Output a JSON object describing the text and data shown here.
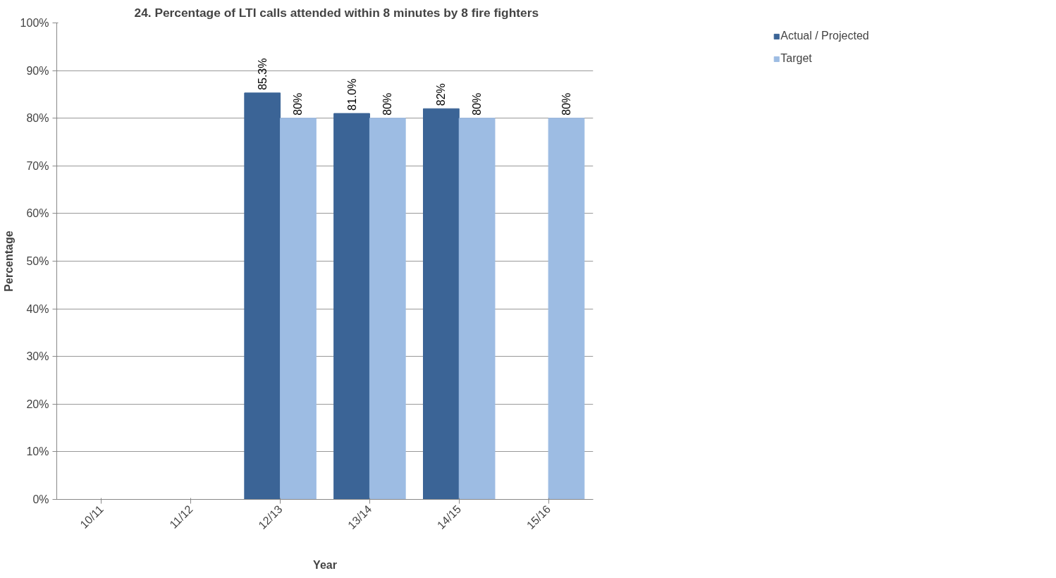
{
  "chart_data": {
    "type": "bar",
    "title": "24. Percentage of LTI calls attended within 8 minutes by 8 fire fighters",
    "xlabel": "Year",
    "ylabel": "Percentage",
    "categories": [
      "10/11",
      "11/12",
      "12/13",
      "13/14",
      "14/15",
      "15/16"
    ],
    "series": [
      {
        "name": "Actual / Projected",
        "color": "#3b6496",
        "values": [
          null,
          null,
          85.3,
          81.0,
          82,
          null
        ],
        "value_labels": [
          null,
          null,
          "85.3%",
          "81.0%",
          "82%",
          null
        ]
      },
      {
        "name": "Target",
        "color": "#9dbce3",
        "values": [
          null,
          null,
          80,
          80,
          80,
          80
        ],
        "value_labels": [
          null,
          null,
          "80%",
          "80%",
          "80%",
          "80%"
        ]
      }
    ],
    "ylim": [
      0,
      100
    ],
    "yticks": [
      {
        "value": 0,
        "label": "0%"
      },
      {
        "value": 10,
        "label": "10%"
      },
      {
        "value": 20,
        "label": "20%"
      },
      {
        "value": 30,
        "label": "30%"
      },
      {
        "value": 40,
        "label": "40%"
      },
      {
        "value": 50,
        "label": "50%"
      },
      {
        "value": 60,
        "label": "60%"
      },
      {
        "value": 70,
        "label": "70%"
      },
      {
        "value": 80,
        "label": "80%"
      },
      {
        "value": 90,
        "label": "90%"
      },
      {
        "value": 100,
        "label": "100%"
      }
    ],
    "grid": "y",
    "legend": "top right"
  }
}
